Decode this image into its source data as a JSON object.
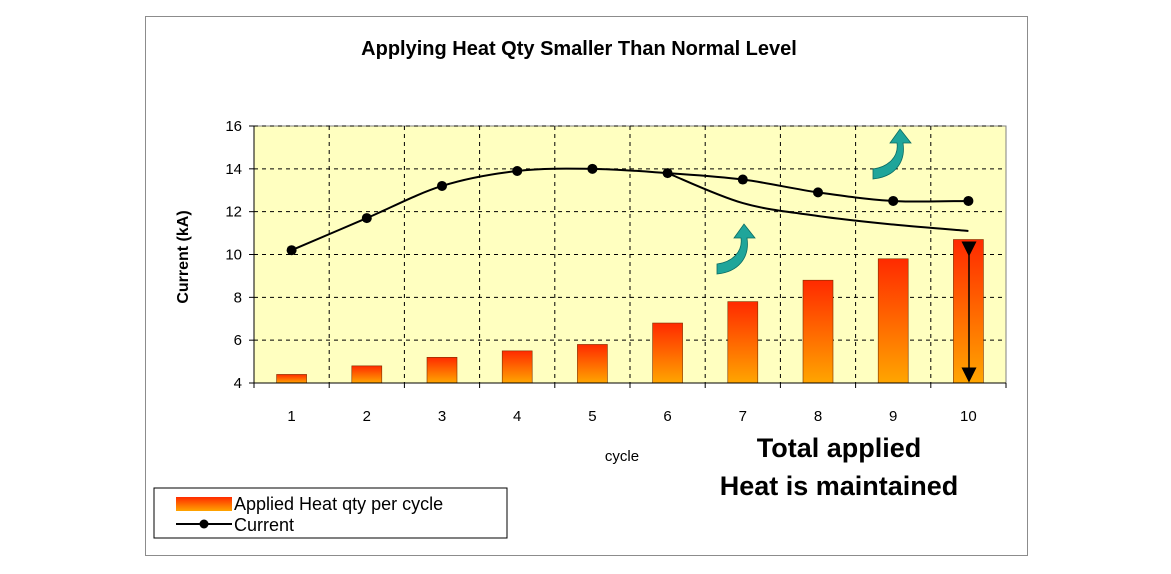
{
  "chart_data": {
    "type": "bar",
    "title": "Applying Heat Qty Smaller Than Normal Level",
    "xlabel": "cycle",
    "ylabel": "Current (kA)",
    "categories": [
      "1",
      "2",
      "3",
      "4",
      "5",
      "6",
      "7",
      "8",
      "9",
      "10"
    ],
    "ylim": [
      4,
      16
    ],
    "yticks": [
      4,
      6,
      8,
      10,
      12,
      14,
      16
    ],
    "grid": true,
    "plot_background": "#ffffc0",
    "series": [
      {
        "name": "Applied Heat qty per cycle",
        "type": "bar",
        "values": [
          4.4,
          4.8,
          5.2,
          5.5,
          5.8,
          6.8,
          7.8,
          8.8,
          9.8,
          10.7
        ],
        "colors": [
          "#ff2a00",
          "#ffa500"
        ]
      },
      {
        "name": "Current",
        "type": "line",
        "marker": "circle",
        "values": [
          10.2,
          11.7,
          13.2,
          13.9,
          14.0,
          13.8,
          13.5,
          12.9,
          12.5,
          12.5
        ],
        "color": "#000000"
      },
      {
        "type": "line",
        "marker": "none",
        "x": [
          6,
          7,
          8,
          9,
          10
        ],
        "values": [
          13.8,
          12.4,
          11.8,
          11.4,
          11.1
        ],
        "color": "#000000"
      }
    ],
    "annotations": {
      "note_line1": "Total applied",
      "note_line2": "Heat is maintained"
    },
    "legend_position": "bottom-left",
    "arrow_color": "#1fa59a"
  }
}
